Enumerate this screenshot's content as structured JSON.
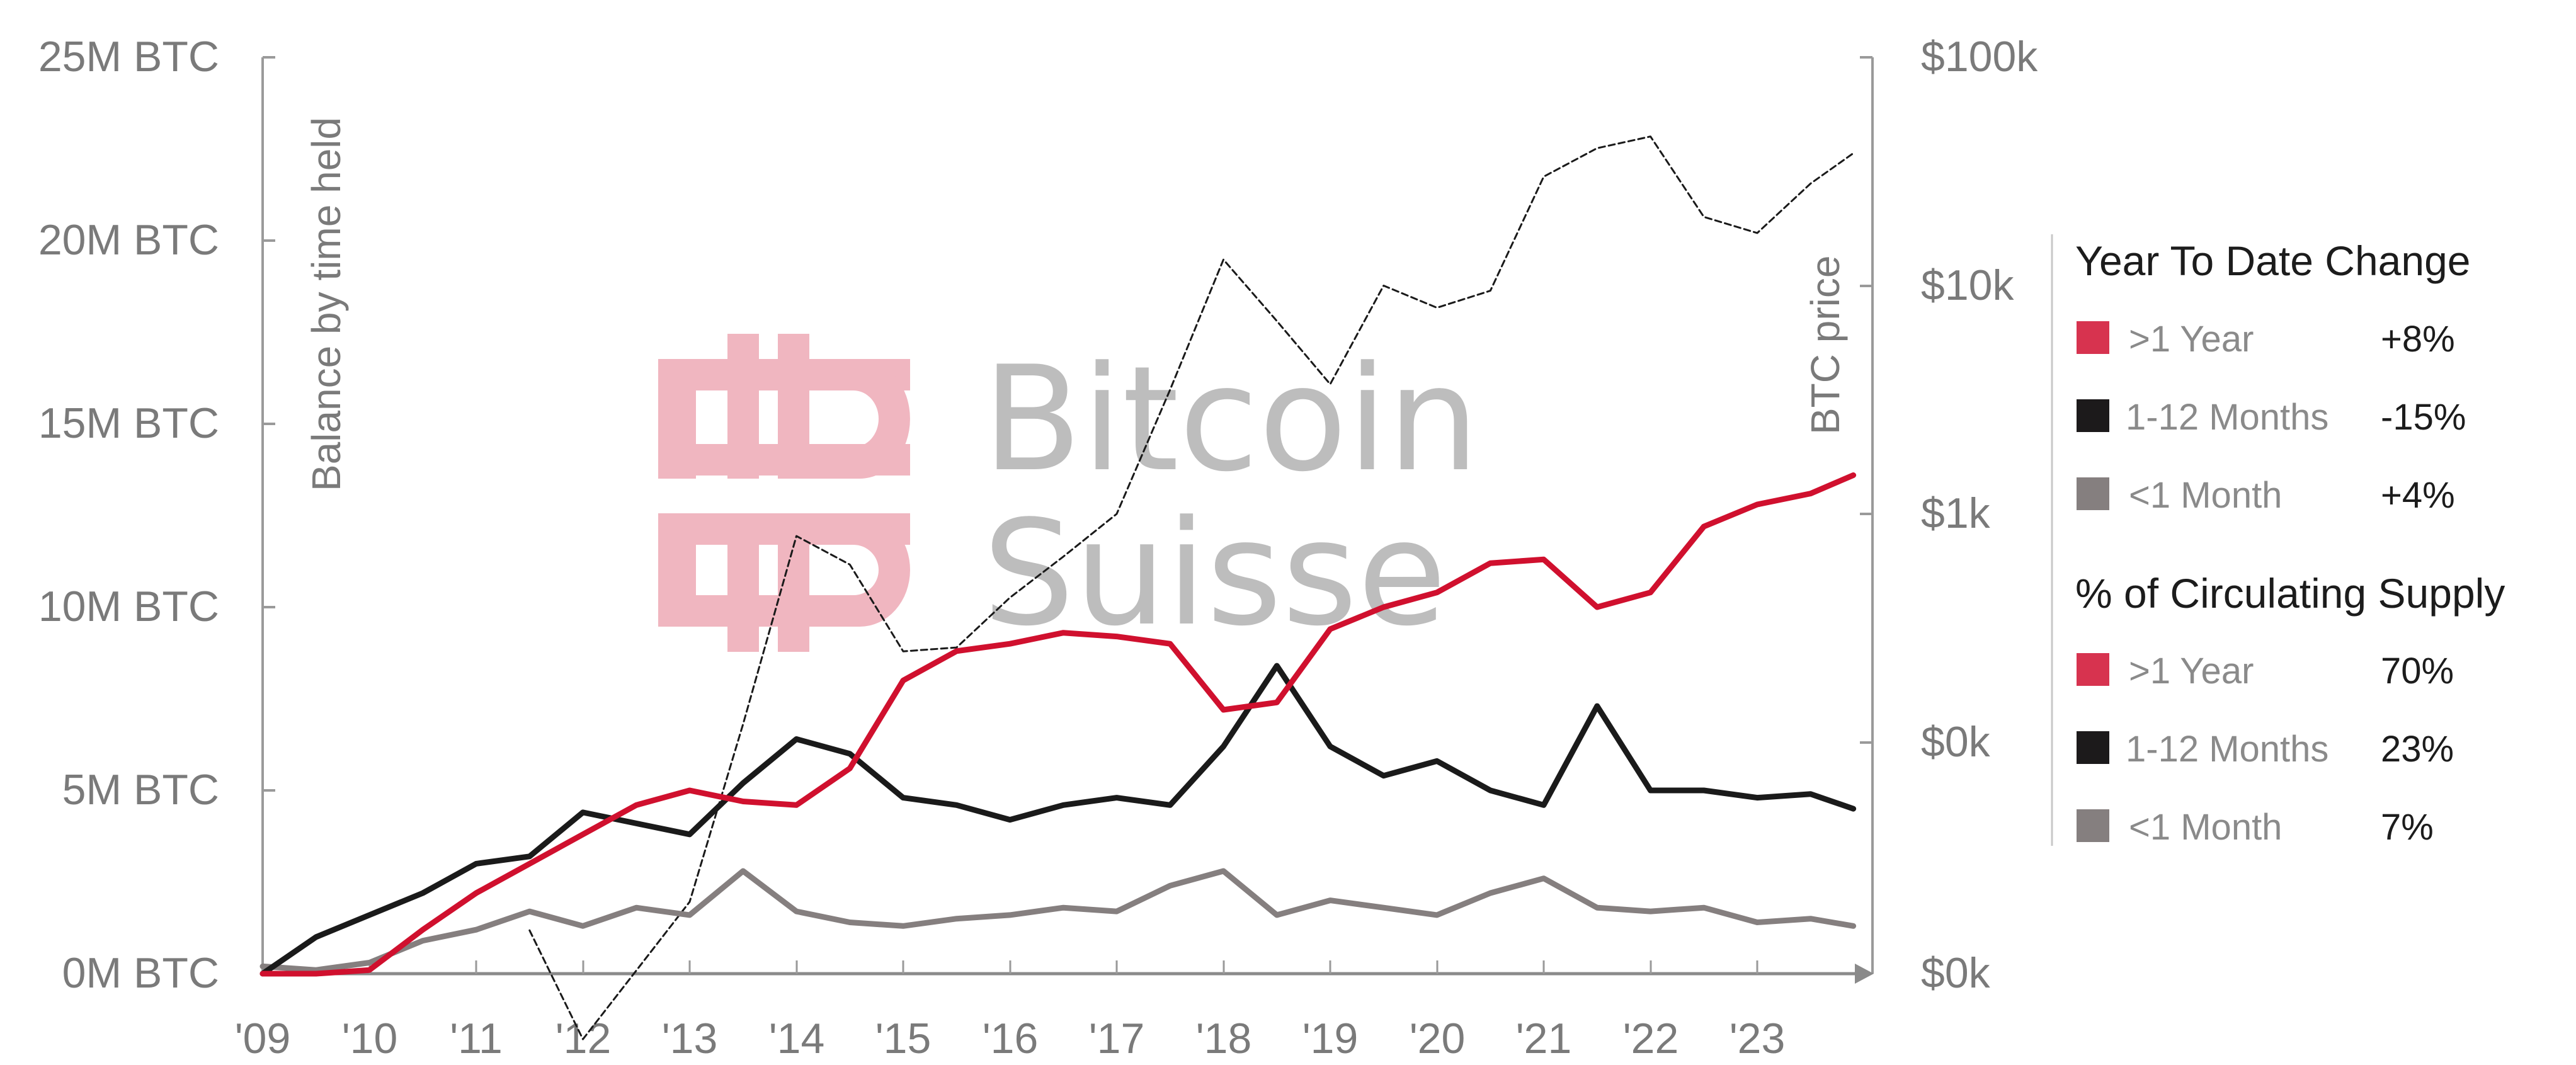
{
  "chart_data": {
    "type": "line",
    "title": "",
    "watermark": {
      "line1": "Bitcoin",
      "line2": "Suisse"
    },
    "xlabel": "",
    "ylabel_left": "Balance by time held",
    "ylabel_right": "BTC price",
    "x_ticks": [
      "'09",
      "'10",
      "'11",
      "'12",
      "'13",
      "'14",
      "'15",
      "'16",
      "'17",
      "'18",
      "'19",
      "'20",
      "'21",
      "'22",
      "'23"
    ],
    "y_left_ticks": [
      "0M BTC",
      "5M BTC",
      "10M BTC",
      "15M BTC",
      "20M BTC",
      "25M BTC"
    ],
    "y_left_range": [
      0,
      25
    ],
    "y_right_ticks": [
      "$0k",
      "$0k",
      "$1k",
      "$10k",
      "$100k"
    ],
    "y_right_scale": "log",
    "y_right_range": [
      10,
      100000
    ],
    "grid": false,
    "legend_position": "right",
    "x": [
      2009.0,
      2009.5,
      2010.0,
      2010.5,
      2011.0,
      2011.5,
      2012.0,
      2012.5,
      2013.0,
      2013.5,
      2014.0,
      2014.5,
      2015.0,
      2015.5,
      2016.0,
      2016.5,
      2017.0,
      2017.5,
      2018.0,
      2018.5,
      2019.0,
      2019.5,
      2020.0,
      2020.5,
      2021.0,
      2021.5,
      2022.0,
      2022.5,
      2023.0,
      2023.5,
      2023.9
    ],
    "series": [
      {
        "name": ">1 Year",
        "color": "#d0102e",
        "unit": "M BTC",
        "values": [
          0.0,
          0.0,
          0.1,
          1.2,
          2.2,
          3.0,
          3.8,
          4.6,
          5.0,
          4.7,
          4.6,
          5.6,
          8.0,
          8.8,
          9.0,
          9.3,
          9.2,
          9.0,
          7.2,
          7.4,
          9.4,
          10.0,
          10.4,
          11.2,
          11.3,
          10.0,
          10.4,
          12.2,
          12.8,
          13.1,
          13.6
        ]
      },
      {
        "name": "1-12 Months",
        "color": "#1a1a1a",
        "unit": "M BTC",
        "values": [
          0.0,
          1.0,
          1.6,
          2.2,
          3.0,
          3.2,
          4.4,
          4.1,
          3.8,
          5.2,
          6.4,
          6.0,
          4.8,
          4.6,
          4.2,
          4.6,
          4.8,
          4.6,
          6.2,
          8.4,
          6.2,
          5.4,
          5.8,
          5.0,
          4.6,
          7.3,
          5.0,
          5.0,
          4.8,
          4.9,
          4.5
        ]
      },
      {
        "name": "<1 Month",
        "color": "#857f7f",
        "unit": "M BTC",
        "values": [
          0.2,
          0.1,
          0.3,
          0.9,
          1.2,
          1.7,
          1.3,
          1.8,
          1.6,
          2.8,
          1.7,
          1.4,
          1.3,
          1.5,
          1.6,
          1.8,
          1.7,
          2.4,
          2.8,
          1.6,
          2.0,
          1.8,
          1.6,
          2.2,
          2.6,
          1.8,
          1.7,
          1.8,
          1.4,
          1.5,
          1.3
        ]
      },
      {
        "name": "BTC price",
        "color": "#1a1a1a",
        "style": "dashed",
        "unit": "USD (log)",
        "values": [
          null,
          null,
          null,
          null,
          null,
          15,
          5,
          10,
          20,
          120,
          800,
          600,
          250,
          260,
          430,
          650,
          1000,
          3500,
          13000,
          7000,
          3700,
          10000,
          8000,
          9500,
          30000,
          40000,
          45000,
          20000,
          17000,
          28000,
          38000
        ]
      }
    ]
  },
  "legend": {
    "ytd": {
      "title": "Year To Date Change",
      "items": [
        {
          "label": ">1 Year",
          "value": "+8%",
          "color": "#d7334f"
        },
        {
          "label": "1-12 Months",
          "value": "-15%",
          "color": "#1c1a1b"
        },
        {
          "label": "<1 Month",
          "value": "+4%",
          "color": "#857f7f"
        }
      ]
    },
    "supply": {
      "title": "% of Circulating Supply",
      "items": [
        {
          "label": ">1 Year",
          "value": "70%",
          "color": "#d7334f"
        },
        {
          "label": "1-12 Months",
          "value": "23%",
          "color": "#1c1a1b"
        },
        {
          "label": "<1 Month",
          "value": "7%",
          "color": "#857f7f"
        }
      ]
    }
  },
  "colors": {
    "axis": "#9a9a9a",
    "tick_text": "#7a7a7a",
    "watermark_logo": "#f0b6c0",
    "watermark_text": "#bdbdbd"
  }
}
